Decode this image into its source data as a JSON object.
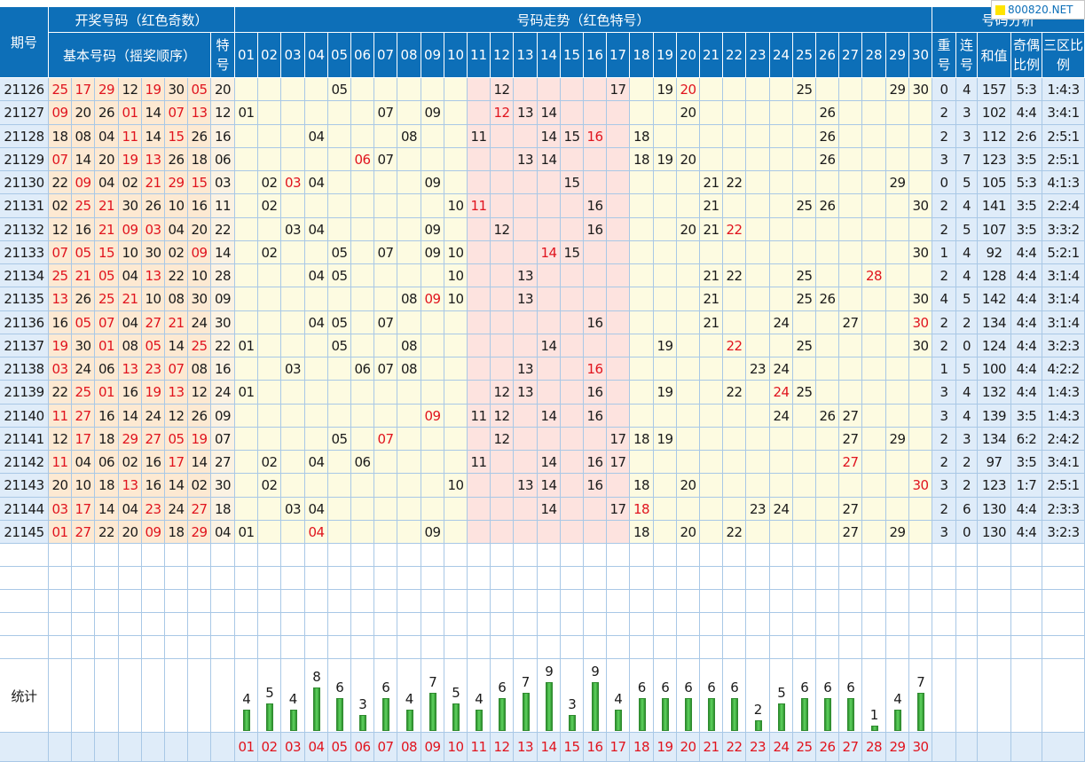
{
  "headers": {
    "period": "期号",
    "draw_group": "开奖号码（红色奇数）",
    "basic_numbers": "基本号码（摇奖顺序）",
    "special": "特号",
    "trend_group": "号码走势（红色特号）",
    "analysis_group": "号码分析",
    "repeat": "重号",
    "consecutive": "连号",
    "sum": "和值",
    "odd_even": "奇偶比例",
    "three_zone": "三区比例"
  },
  "logo_text": "800820.NET",
  "stats_label": "统计",
  "numbers": [
    "01",
    "02",
    "03",
    "04",
    "05",
    "06",
    "07",
    "08",
    "09",
    "10",
    "11",
    "12",
    "13",
    "14",
    "15",
    "16",
    "17",
    "18",
    "19",
    "20",
    "21",
    "22",
    "23",
    "24",
    "25",
    "26",
    "27",
    "28",
    "29",
    "30"
  ],
  "rows": [
    {
      "period": "21126",
      "draw": [
        "25",
        "17",
        "29",
        "12",
        "19",
        "30",
        "05"
      ],
      "special": "20",
      "repeat": "0",
      "consec": "4",
      "sum": "157",
      "oe": "5:3",
      "zone": "1:4:3"
    },
    {
      "period": "21127",
      "draw": [
        "09",
        "20",
        "26",
        "01",
        "14",
        "07",
        "13"
      ],
      "special": "12",
      "repeat": "2",
      "consec": "3",
      "sum": "102",
      "oe": "4:4",
      "zone": "3:4:1"
    },
    {
      "period": "21128",
      "draw": [
        "18",
        "08",
        "04",
        "11",
        "14",
        "15",
        "26"
      ],
      "special": "16",
      "repeat": "2",
      "consec": "3",
      "sum": "112",
      "oe": "2:6",
      "zone": "2:5:1"
    },
    {
      "period": "21129",
      "draw": [
        "07",
        "14",
        "20",
        "19",
        "13",
        "26",
        "18"
      ],
      "special": "06",
      "repeat": "3",
      "consec": "7",
      "sum": "123",
      "oe": "3:5",
      "zone": "2:5:1"
    },
    {
      "period": "21130",
      "draw": [
        "22",
        "09",
        "04",
        "02",
        "21",
        "29",
        "15"
      ],
      "special": "03",
      "repeat": "0",
      "consec": "5",
      "sum": "105",
      "oe": "5:3",
      "zone": "4:1:3"
    },
    {
      "period": "21131",
      "draw": [
        "02",
        "25",
        "21",
        "30",
        "26",
        "10",
        "16"
      ],
      "special": "11",
      "repeat": "2",
      "consec": "4",
      "sum": "141",
      "oe": "3:5",
      "zone": "2:2:4"
    },
    {
      "period": "21132",
      "draw": [
        "12",
        "16",
        "21",
        "09",
        "03",
        "04",
        "20"
      ],
      "special": "22",
      "repeat": "2",
      "consec": "5",
      "sum": "107",
      "oe": "3:5",
      "zone": "3:3:2"
    },
    {
      "period": "21133",
      "draw": [
        "07",
        "05",
        "15",
        "10",
        "30",
        "02",
        "09"
      ],
      "special": "14",
      "repeat": "1",
      "consec": "4",
      "sum": "92",
      "oe": "4:4",
      "zone": "5:2:1"
    },
    {
      "period": "21134",
      "draw": [
        "25",
        "21",
        "05",
        "04",
        "13",
        "22",
        "10"
      ],
      "special": "28",
      "repeat": "2",
      "consec": "4",
      "sum": "128",
      "oe": "4:4",
      "zone": "3:1:4"
    },
    {
      "period": "21135",
      "draw": [
        "13",
        "26",
        "25",
        "21",
        "10",
        "08",
        "30"
      ],
      "special": "09",
      "repeat": "4",
      "consec": "5",
      "sum": "142",
      "oe": "4:4",
      "zone": "3:1:4"
    },
    {
      "period": "21136",
      "draw": [
        "16",
        "05",
        "07",
        "04",
        "27",
        "21",
        "24"
      ],
      "special": "30",
      "repeat": "2",
      "consec": "2",
      "sum": "134",
      "oe": "4:4",
      "zone": "3:1:4"
    },
    {
      "period": "21137",
      "draw": [
        "19",
        "30",
        "01",
        "08",
        "05",
        "14",
        "25"
      ],
      "special": "22",
      "repeat": "2",
      "consec": "0",
      "sum": "124",
      "oe": "4:4",
      "zone": "3:2:3"
    },
    {
      "period": "21138",
      "draw": [
        "03",
        "24",
        "06",
        "13",
        "23",
        "07",
        "08"
      ],
      "special": "16",
      "repeat": "1",
      "consec": "5",
      "sum": "100",
      "oe": "4:4",
      "zone": "4:2:2"
    },
    {
      "period": "21139",
      "draw": [
        "22",
        "25",
        "01",
        "16",
        "19",
        "13",
        "12"
      ],
      "special": "24",
      "repeat": "3",
      "consec": "4",
      "sum": "132",
      "oe": "4:4",
      "zone": "1:4:3"
    },
    {
      "period": "21140",
      "draw": [
        "11",
        "27",
        "16",
        "14",
        "24",
        "12",
        "26"
      ],
      "special": "09",
      "repeat": "3",
      "consec": "4",
      "sum": "139",
      "oe": "3:5",
      "zone": "1:4:3"
    },
    {
      "period": "21141",
      "draw": [
        "12",
        "17",
        "18",
        "29",
        "27",
        "05",
        "19"
      ],
      "special": "07",
      "repeat": "2",
      "consec": "3",
      "sum": "134",
      "oe": "6:2",
      "zone": "2:4:2"
    },
    {
      "period": "21142",
      "draw": [
        "11",
        "04",
        "06",
        "02",
        "16",
        "17",
        "14"
      ],
      "special": "27",
      "repeat": "2",
      "consec": "2",
      "sum": "97",
      "oe": "3:5",
      "zone": "3:4:1"
    },
    {
      "period": "21143",
      "draw": [
        "20",
        "10",
        "18",
        "13",
        "16",
        "14",
        "02"
      ],
      "special": "30",
      "repeat": "3",
      "consec": "2",
      "sum": "123",
      "oe": "1:7",
      "zone": "2:5:1"
    },
    {
      "period": "21144",
      "draw": [
        "03",
        "17",
        "14",
        "04",
        "23",
        "24",
        "27"
      ],
      "special": "18",
      "repeat": "2",
      "consec": "6",
      "sum": "130",
      "oe": "4:4",
      "zone": "2:3:3"
    },
    {
      "period": "21145",
      "draw": [
        "01",
        "27",
        "22",
        "20",
        "09",
        "18",
        "29"
      ],
      "special": "04",
      "repeat": "3",
      "consec": "0",
      "sum": "130",
      "oe": "4:4",
      "zone": "3:2:3"
    }
  ],
  "stats_counts": [
    4,
    5,
    4,
    8,
    6,
    3,
    6,
    4,
    7,
    5,
    4,
    6,
    7,
    9,
    3,
    9,
    4,
    6,
    6,
    6,
    6,
    6,
    2,
    5,
    6,
    6,
    6,
    1,
    4,
    7
  ],
  "colors": {
    "header_blue": "#0d6fb8",
    "draw_bg": "#fde9d2",
    "draw_bg_alt": "#fbf2e3",
    "zone_left_bg": "#fdfbe1",
    "zone_mid_bg": "#fde3df",
    "analysis_bg": "#dfecf9",
    "odd_red": "#e0141e",
    "grid_line": "#a9c8e6"
  }
}
